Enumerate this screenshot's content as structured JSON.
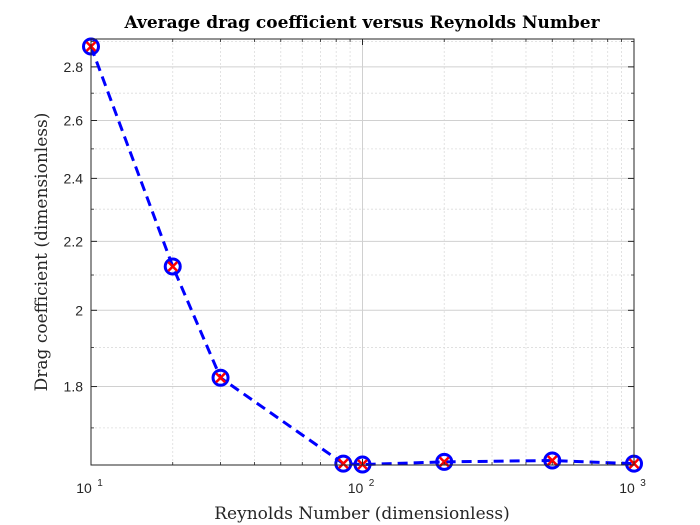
{
  "chart_data": {
    "type": "line",
    "title": "Average drag coefficient versus Reynolds Number",
    "xlabel": "Reynolds Number (dimensionless)",
    "ylabel": "Drag coefficient  (dimensionless)",
    "xscale": "log",
    "yscale": "log",
    "xlim": [
      10,
      1000
    ],
    "ylim": [
      1.615,
      2.91
    ],
    "x_ticks": [
      {
        "value": 10,
        "base": "10",
        "exp": "1"
      },
      {
        "value": 100,
        "base": "10",
        "exp": "2"
      },
      {
        "value": 1000,
        "base": "10",
        "exp": "3"
      }
    ],
    "y_ticks": [
      {
        "value": 1.8,
        "label": "1.8"
      },
      {
        "value": 2.0,
        "label": "2"
      },
      {
        "value": 2.2,
        "label": "2.2"
      },
      {
        "value": 2.4,
        "label": "2.4"
      },
      {
        "value": 2.6,
        "label": "2.6"
      },
      {
        "value": 2.8,
        "label": "2.8"
      }
    ],
    "grid": true,
    "minor_grid": true,
    "series": [
      {
        "name": "Drag coefficient",
        "x": [
          10,
          20,
          30,
          85,
          100,
          200,
          500,
          1000
        ],
        "y": [
          2.88,
          2.125,
          1.822,
          1.618,
          1.616,
          1.622,
          1.625,
          1.618
        ],
        "line_color": "#0000ff",
        "line_style": "dashed",
        "marker_circle_color": "#0000ff",
        "marker_x_color": "#ff0000"
      }
    ]
  }
}
